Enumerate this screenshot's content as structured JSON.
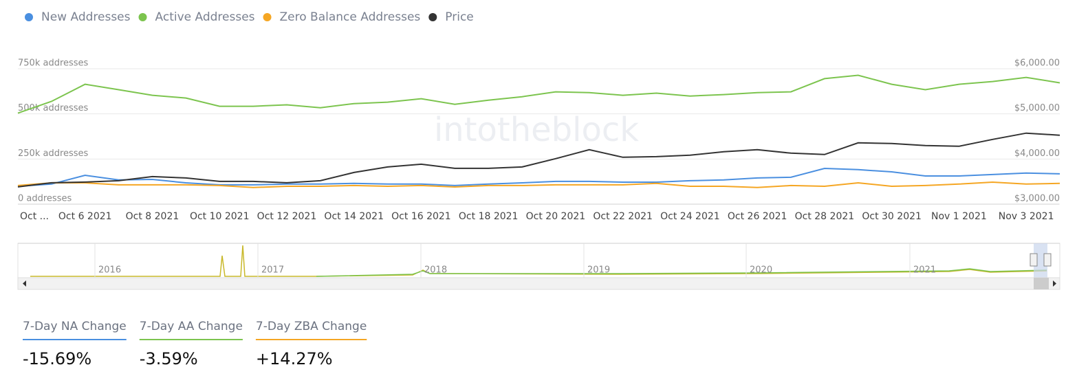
{
  "chart_data": {
    "type": "line",
    "watermark": "intotheblock",
    "categories": [
      "Oct ...",
      null,
      "Oct 6 2021",
      null,
      "Oct 8 2021",
      null,
      "Oct 10 2021",
      null,
      "Oct 12 2021",
      null,
      "Oct 14 2021",
      null,
      "Oct 16 2021",
      null,
      "Oct 18 2021",
      null,
      "Oct 20 2021",
      null,
      "Oct 22 2021",
      null,
      "Oct 24 2021",
      null,
      "Oct 26 2021",
      null,
      "Oct 28 2021",
      null,
      "Oct 30 2021",
      null,
      "Nov 1 2021",
      null,
      "Nov 3 2021",
      null
    ],
    "series": [
      {
        "name": "New Addresses",
        "color": "#4a8fe0",
        "values": [
          99000,
          111000,
          160000,
          134000,
          137000,
          118000,
          107000,
          107000,
          111000,
          111000,
          115000,
          111000,
          111000,
          103000,
          111000,
          118000,
          126000,
          126000,
          122000,
          122000,
          130000,
          134000,
          145000,
          149000,
          198000,
          191000,
          179000,
          156000,
          156000,
          164000,
          172000,
          168000
        ]
      },
      {
        "name": "Active Addresses",
        "color": "#7cc44e",
        "values": [
          504000,
          569000,
          664000,
          634000,
          603000,
          588000,
          542000,
          542000,
          550000,
          534000,
          557000,
          565000,
          584000,
          553000,
          576000,
          595000,
          622000,
          618000,
          603000,
          615000,
          599000,
          607000,
          618000,
          622000,
          695000,
          714000,
          664000,
          634000,
          664000,
          679000,
          702000,
          672000
        ]
      },
      {
        "name": "Zero Balance Addresses",
        "color": "#f5a623",
        "values": [
          103000,
          118000,
          118000,
          107000,
          107000,
          107000,
          103000,
          92000,
          99000,
          99000,
          103000,
          99000,
          103000,
          95000,
          103000,
          103000,
          107000,
          107000,
          107000,
          115000,
          99000,
          99000,
          92000,
          103000,
          99000,
          118000,
          99000,
          103000,
          111000,
          122000,
          111000,
          115000
        ]
      },
      {
        "name": "Price",
        "color": "#333333",
        "axis": "y2",
        "values": [
          3382,
          3473,
          3489,
          3519,
          3611,
          3580,
          3504,
          3504,
          3473,
          3519,
          3702,
          3824,
          3885,
          3794,
          3794,
          3824,
          4008,
          4206,
          4038,
          4053,
          4084,
          4160,
          4206,
          4130,
          4099,
          4359,
          4344,
          4298,
          4282,
          4435,
          4573,
          4527
        ]
      }
    ],
    "ylim": [
      0,
      750000
    ],
    "yticks": [
      {
        "value": 0,
        "label": "0 addresses"
      },
      {
        "value": 250000,
        "label": "250k addresses"
      },
      {
        "value": 500000,
        "label": "500k addresses"
      },
      {
        "value": 750000,
        "label": "750k addresses"
      }
    ],
    "y2lim": [
      3000,
      6000
    ],
    "y2ticks": [
      {
        "value": 3000,
        "label": "$3,000.00"
      },
      {
        "value": 4000,
        "label": "$4,000.00"
      },
      {
        "value": 5000,
        "label": "$5,000.00"
      },
      {
        "value": 6000,
        "label": "$6,000.00"
      }
    ],
    "grid": true,
    "legend": "top"
  },
  "navigator": {
    "labels": [
      "2016",
      "2017",
      "2018",
      "2019",
      "2020",
      "2021"
    ]
  },
  "stats": [
    {
      "label": "7-Day NA Change",
      "value": "-15.69%",
      "color": "#4a8fe0"
    },
    {
      "label": "7-Day AA Change",
      "value": "-3.59%",
      "color": "#7cc44e"
    },
    {
      "label": "7-Day ZBA Change",
      "value": "+14.27%",
      "color": "#f5a623"
    }
  ]
}
